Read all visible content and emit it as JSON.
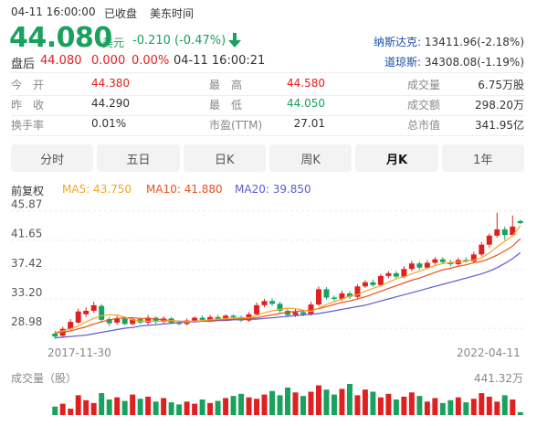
{
  "header": {
    "datetime": "04-11 16:00:00",
    "status": "已收盘",
    "timezone": "美东时间",
    "price": "44.080",
    "currency": "美元",
    "change": "-0.210 (-0.47%)",
    "arrow_icon": "down-arrow-icon",
    "after_hours_label": "盘后",
    "after_hours_price": "44.080",
    "after_hours_change": "0.000",
    "after_hours_pct": "0.00%",
    "after_hours_time": "04-11 16:00:21",
    "indices": [
      {
        "name": "纳斯达克:",
        "value": "13411.96(-2.18%)"
      },
      {
        "name": "道琼斯:",
        "value": "34308.08(-1.19%)"
      }
    ]
  },
  "stats": [
    [
      {
        "label": "今　开",
        "value": "44.380",
        "color": "#e02020"
      },
      {
        "label": "最　高",
        "value": "44.580",
        "color": "#e02020"
      },
      {
        "label": "成交量",
        "value": "6.75万股",
        "color": "#333"
      }
    ],
    [
      {
        "label": "昨　收",
        "value": "44.290",
        "color": "#333"
      },
      {
        "label": "最　低",
        "value": "44.050",
        "color": "#19a15f"
      },
      {
        "label": "成交额",
        "value": "298.20万",
        "color": "#333"
      }
    ],
    [
      {
        "label": "换手率",
        "value": "0.01%",
        "color": "#333"
      },
      {
        "label": "市盈(TTM)",
        "value": "27.01",
        "color": "#333"
      },
      {
        "label": "总市值",
        "value": "341.95亿",
        "color": "#333"
      }
    ]
  ],
  "tabs": [
    {
      "label": "分时",
      "active": false
    },
    {
      "label": "五日",
      "active": false
    },
    {
      "label": "日K",
      "active": false
    },
    {
      "label": "周K",
      "active": false
    },
    {
      "label": "月K",
      "active": true
    },
    {
      "label": "1年",
      "active": false
    }
  ],
  "legend": {
    "adjust": "前复权",
    "ma5": "MA5: 43.750",
    "ma10": "MA10: 41.880",
    "ma20": "MA20: 39.850"
  },
  "colors": {
    "up": "#e02020",
    "down": "#19a15f",
    "ma5": "#f5a623",
    "ma10": "#e8521e",
    "ma20": "#5b5bd6"
  },
  "chart_data": {
    "type": "candlestick",
    "y_ticks": [
      "45.87",
      "41.65",
      "37.42",
      "33.20",
      "28.98"
    ],
    "y_tick_values": [
      45.87,
      41.65,
      37.42,
      33.2,
      28.98
    ],
    "x_start_label": "2017-11-30",
    "x_end_label": "2022-04-11",
    "volume_label": "成交量（股）",
    "volume_max_label": "441.32万",
    "candles": [
      {
        "o": 28.2,
        "c": 27.8,
        "h": 28.6,
        "l": 27.5
      },
      {
        "o": 27.9,
        "c": 28.9,
        "h": 29.2,
        "l": 27.7
      },
      {
        "o": 28.9,
        "c": 29.9,
        "h": 30.3,
        "l": 28.7
      },
      {
        "o": 29.8,
        "c": 31.4,
        "h": 31.8,
        "l": 29.6
      },
      {
        "o": 31.0,
        "c": 31.5,
        "h": 32.0,
        "l": 30.6
      },
      {
        "o": 31.5,
        "c": 32.3,
        "h": 32.8,
        "l": 31.2
      },
      {
        "o": 32.2,
        "c": 30.2,
        "h": 32.5,
        "l": 29.8
      },
      {
        "o": 30.3,
        "c": 29.7,
        "h": 30.6,
        "l": 29.3
      },
      {
        "o": 29.8,
        "c": 30.4,
        "h": 30.8,
        "l": 29.5
      },
      {
        "o": 30.4,
        "c": 29.6,
        "h": 30.6,
        "l": 29.4
      },
      {
        "o": 29.6,
        "c": 30.3,
        "h": 30.6,
        "l": 29.4
      },
      {
        "o": 30.3,
        "c": 29.8,
        "h": 30.5,
        "l": 29.6
      },
      {
        "o": 29.8,
        "c": 30.5,
        "h": 30.9,
        "l": 29.5
      },
      {
        "o": 30.5,
        "c": 29.9,
        "h": 30.7,
        "l": 29.6
      },
      {
        "o": 29.9,
        "c": 30.4,
        "h": 30.7,
        "l": 29.7
      },
      {
        "o": 30.4,
        "c": 29.8,
        "h": 30.6,
        "l": 29.6
      },
      {
        "o": 29.8,
        "c": 29.6,
        "h": 30.1,
        "l": 29.4
      },
      {
        "o": 29.6,
        "c": 30.1,
        "h": 30.4,
        "l": 29.4
      },
      {
        "o": 30.1,
        "c": 30.5,
        "h": 30.7,
        "l": 29.9
      },
      {
        "o": 30.5,
        "c": 30.2,
        "h": 30.8,
        "l": 30.0
      },
      {
        "o": 30.2,
        "c": 30.6,
        "h": 30.9,
        "l": 30.0
      },
      {
        "o": 30.6,
        "c": 30.3,
        "h": 30.9,
        "l": 30.1
      },
      {
        "o": 30.3,
        "c": 30.8,
        "h": 31.0,
        "l": 30.1
      },
      {
        "o": 30.8,
        "c": 30.6,
        "h": 31.0,
        "l": 30.3
      },
      {
        "o": 30.6,
        "c": 30.1,
        "h": 30.8,
        "l": 29.9
      },
      {
        "o": 30.1,
        "c": 31.0,
        "h": 31.3,
        "l": 29.9
      },
      {
        "o": 31.0,
        "c": 32.3,
        "h": 32.7,
        "l": 30.8
      },
      {
        "o": 32.3,
        "c": 32.9,
        "h": 33.2,
        "l": 32.0
      },
      {
        "o": 32.9,
        "c": 32.5,
        "h": 33.3,
        "l": 32.2
      },
      {
        "o": 32.5,
        "c": 31.5,
        "h": 32.8,
        "l": 31.2
      },
      {
        "o": 31.5,
        "c": 30.9,
        "h": 31.8,
        "l": 30.6
      },
      {
        "o": 30.9,
        "c": 31.3,
        "h": 31.8,
        "l": 30.6
      },
      {
        "o": 31.3,
        "c": 31.0,
        "h": 31.6,
        "l": 30.7
      },
      {
        "o": 31.0,
        "c": 32.4,
        "h": 32.8,
        "l": 30.8
      },
      {
        "o": 32.4,
        "c": 34.6,
        "h": 35.0,
        "l": 32.2
      },
      {
        "o": 34.6,
        "c": 33.4,
        "h": 34.9,
        "l": 33.1
      },
      {
        "o": 33.4,
        "c": 33.2,
        "h": 33.7,
        "l": 32.9
      },
      {
        "o": 33.2,
        "c": 34.0,
        "h": 34.4,
        "l": 32.9
      },
      {
        "o": 34.0,
        "c": 33.5,
        "h": 34.3,
        "l": 33.2
      },
      {
        "o": 33.5,
        "c": 35.0,
        "h": 35.3,
        "l": 33.3
      },
      {
        "o": 35.0,
        "c": 35.6,
        "h": 35.9,
        "l": 34.8
      },
      {
        "o": 35.6,
        "c": 35.2,
        "h": 36.0,
        "l": 34.9
      },
      {
        "o": 35.2,
        "c": 36.5,
        "h": 36.8,
        "l": 35.0
      },
      {
        "o": 36.5,
        "c": 36.9,
        "h": 37.2,
        "l": 36.2
      },
      {
        "o": 36.9,
        "c": 36.4,
        "h": 37.2,
        "l": 36.1
      },
      {
        "o": 36.4,
        "c": 37.5,
        "h": 37.9,
        "l": 36.2
      },
      {
        "o": 37.5,
        "c": 38.3,
        "h": 38.7,
        "l": 37.2
      },
      {
        "o": 38.3,
        "c": 37.7,
        "h": 38.6,
        "l": 37.4
      },
      {
        "o": 37.7,
        "c": 38.4,
        "h": 38.8,
        "l": 37.5
      },
      {
        "o": 38.4,
        "c": 38.9,
        "h": 39.2,
        "l": 38.1
      },
      {
        "o": 38.9,
        "c": 38.5,
        "h": 39.2,
        "l": 38.2
      },
      {
        "o": 38.5,
        "c": 38.2,
        "h": 38.8,
        "l": 37.9
      },
      {
        "o": 38.2,
        "c": 38.8,
        "h": 39.1,
        "l": 38.0
      },
      {
        "o": 38.8,
        "c": 38.6,
        "h": 39.2,
        "l": 38.4
      },
      {
        "o": 38.6,
        "c": 39.6,
        "h": 40.0,
        "l": 38.4
      },
      {
        "o": 39.6,
        "c": 41.0,
        "h": 41.4,
        "l": 39.3
      },
      {
        "o": 41.0,
        "c": 42.3,
        "h": 42.6,
        "l": 40.6
      },
      {
        "o": 42.3,
        "c": 43.2,
        "h": 45.6,
        "l": 42.0
      },
      {
        "o": 43.2,
        "c": 42.4,
        "h": 43.6,
        "l": 41.7
      },
      {
        "o": 42.4,
        "c": 43.6,
        "h": 45.2,
        "l": 42.2
      },
      {
        "o": 44.4,
        "c": 44.1,
        "h": 44.6,
        "l": 44.0
      }
    ],
    "ma5": [
      28.4,
      28.6,
      28.9,
      29.3,
      29.9,
      30.4,
      30.8,
      30.9,
      30.9,
      30.6,
      30.2,
      30.0,
      30.0,
      30.0,
      30.0,
      30.1,
      30.0,
      29.9,
      30.0,
      30.1,
      30.2,
      30.3,
      30.4,
      30.5,
      30.5,
      30.5,
      30.8,
      31.2,
      31.5,
      31.7,
      31.9,
      31.8,
      31.6,
      31.4,
      31.9,
      32.4,
      32.8,
      33.2,
      33.6,
      33.8,
      34.3,
      34.7,
      35.1,
      35.6,
      36.1,
      36.4,
      36.8,
      37.2,
      37.6,
      38.0,
      38.3,
      38.4,
      38.5,
      38.6,
      38.8,
      39.1,
      39.8,
      40.7,
      41.5,
      42.3,
      43.75
    ],
    "ma10": [
      28.3,
      28.4,
      28.6,
      28.9,
      29.2,
      29.6,
      29.9,
      30.2,
      30.4,
      30.5,
      30.5,
      30.4,
      30.4,
      30.3,
      30.2,
      30.1,
      30.0,
      30.0,
      30.0,
      30.0,
      30.1,
      30.2,
      30.2,
      30.3,
      30.3,
      30.4,
      30.5,
      30.7,
      30.9,
      31.1,
      31.3,
      31.4,
      31.5,
      31.6,
      31.8,
      32.1,
      32.4,
      32.7,
      32.9,
      33.2,
      33.5,
      33.9,
      34.3,
      34.7,
      35.1,
      35.5,
      35.9,
      36.2,
      36.6,
      37.0,
      37.4,
      37.6,
      37.9,
      38.1,
      38.4,
      38.6,
      39.0,
      39.5,
      40.1,
      40.8,
      41.88
    ],
    "ma20": [
      27.6,
      27.7,
      27.8,
      27.9,
      28.0,
      28.2,
      28.4,
      28.6,
      28.8,
      29.0,
      29.1,
      29.3,
      29.4,
      29.5,
      29.6,
      29.7,
      29.8,
      29.9,
      29.9,
      30.0,
      30.0,
      30.1,
      30.1,
      30.2,
      30.2,
      30.3,
      30.3,
      30.4,
      30.5,
      30.6,
      30.7,
      30.8,
      30.9,
      31.0,
      31.1,
      31.3,
      31.5,
      31.7,
      31.9,
      32.1,
      32.3,
      32.6,
      32.9,
      33.2,
      33.5,
      33.8,
      34.1,
      34.4,
      34.7,
      35.0,
      35.3,
      35.6,
      35.9,
      36.2,
      36.5,
      36.8,
      37.2,
      37.7,
      38.3,
      39.0,
      39.85
    ],
    "volumes": [
      1.2,
      1.6,
      0.9,
      2.8,
      2.1,
      1.7,
      3.1,
      2.2,
      2.5,
      2.0,
      2.9,
      2.3,
      2.6,
      1.9,
      2.4,
      1.8,
      1.5,
      1.9,
      1.6,
      2.2,
      1.7,
      2.0,
      2.4,
      2.7,
      3.0,
      2.5,
      2.3,
      2.9,
      3.4,
      2.8,
      3.9,
      3.2,
      2.7,
      3.3,
      4.2,
      3.6,
      2.9,
      3.7,
      4.4,
      2.8,
      3.6,
      3.3,
      2.5,
      3.0,
      2.2,
      2.6,
      3.2,
      2.7,
      1.9,
      2.4,
      1.7,
      2.1,
      2.5,
      1.8,
      2.3,
      3.1,
      2.6,
      1.9,
      2.8,
      2.2,
      0.4
    ]
  }
}
